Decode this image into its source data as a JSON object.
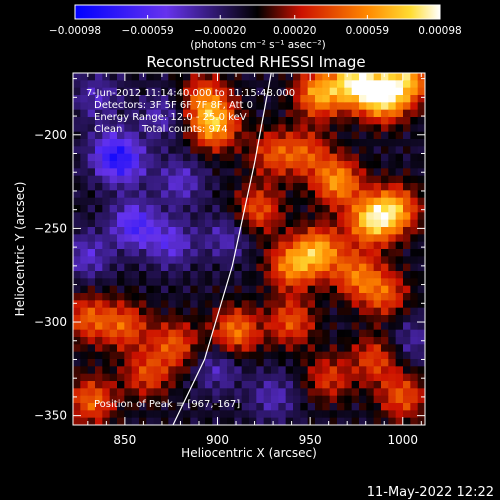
{
  "chart_data": {
    "type": "heatmap",
    "title": "Reconstructed RHESSI Image",
    "xlabel": "Heliocentric X (arcsec)",
    "ylabel": "Heliocentric Y (arcsec)",
    "xlim": [
      822,
      1012
    ],
    "ylim": [
      -355,
      -167
    ],
    "x_ticks": [
      850,
      900,
      950,
      1000
    ],
    "y_ticks": [
      -350,
      -300,
      -250,
      -200
    ],
    "grid": false,
    "annotations": {
      "time_range": "7-Jun-2012 11:14:40.000 to 11:15:48.000",
      "detectors": "Detectors: 3F 5F 6F 7F 8F, Att 0",
      "energy_range": "Energy Range: 12.0 - 25.0 keV",
      "clean": "Clean",
      "total_counts": "Total counts: 974",
      "peak": "Position of Peak = [967,-167]"
    },
    "colorbar": {
      "colormap": "blue-purple-black-red-orange-yellow-white",
      "ticks": [
        "-0.00098",
        "-0.00059",
        "-0.00020",
        "0.00020",
        "0.00059",
        "0.00098"
      ],
      "range": [
        -0.00098,
        0.00098
      ],
      "label": "(photons cm⁻² s⁻¹ asec⁻²)"
    },
    "peak_position": [
      967,
      -167
    ],
    "limb_curve": {
      "x": [
        929,
        920,
        908,
        893,
        876
      ],
      "y": [
        -167,
        -215,
        -270,
        -320,
        -355
      ]
    },
    "intensity_structures": [
      {
        "x": 975,
        "y": -172,
        "level": 0.96
      },
      {
        "x": 990,
        "y": -180,
        "level": 0.9
      },
      {
        "x": 955,
        "y": -178,
        "level": 0.75
      },
      {
        "x": 1003,
        "y": -170,
        "level": 0.7
      },
      {
        "x": 898,
        "y": -195,
        "level": 0.78
      },
      {
        "x": 893,
        "y": -180,
        "level": 0.5
      },
      {
        "x": 983,
        "y": -246,
        "level": 0.82
      },
      {
        "x": 996,
        "y": -240,
        "level": 0.7
      },
      {
        "x": 965,
        "y": -225,
        "level": 0.7
      },
      {
        "x": 955,
        "y": -262,
        "level": 0.72
      },
      {
        "x": 940,
        "y": -270,
        "level": 0.65
      },
      {
        "x": 975,
        "y": -275,
        "level": 0.55
      },
      {
        "x": 990,
        "y": -285,
        "level": 0.5
      },
      {
        "x": 922,
        "y": -240,
        "level": 0.5
      },
      {
        "x": 910,
        "y": -305,
        "level": 0.62
      },
      {
        "x": 940,
        "y": -300,
        "level": 0.5
      },
      {
        "x": 877,
        "y": -312,
        "level": 0.5
      },
      {
        "x": 850,
        "y": -302,
        "level": 0.5
      },
      {
        "x": 830,
        "y": -298,
        "level": 0.5
      },
      {
        "x": 862,
        "y": -328,
        "level": 0.45
      },
      {
        "x": 832,
        "y": -342,
        "level": 0.55
      },
      {
        "x": 1000,
        "y": -340,
        "level": 0.5
      },
      {
        "x": 985,
        "y": -320,
        "level": 0.45
      },
      {
        "x": 960,
        "y": -330,
        "level": 0.4
      },
      {
        "x": 948,
        "y": -210,
        "level": 0.45
      },
      {
        "x": 930,
        "y": -210,
        "level": 0.45
      },
      {
        "x": 850,
        "y": -215,
        "level": -0.4
      },
      {
        "x": 855,
        "y": -248,
        "level": -0.55
      },
      {
        "x": 843,
        "y": -210,
        "level": -0.45
      },
      {
        "x": 875,
        "y": -258,
        "level": -0.4
      },
      {
        "x": 880,
        "y": -225,
        "level": -0.35
      },
      {
        "x": 905,
        "y": -255,
        "level": -0.3
      },
      {
        "x": 900,
        "y": -325,
        "level": -0.3
      },
      {
        "x": 930,
        "y": -340,
        "level": -0.3
      },
      {
        "x": 835,
        "y": -180,
        "level": -0.3
      },
      {
        "x": 870,
        "y": -190,
        "level": -0.3
      },
      {
        "x": 830,
        "y": -265,
        "level": -0.35
      },
      {
        "x": 1005,
        "y": -310,
        "level": -0.25
      }
    ]
  },
  "footer": {
    "timestamp": "11-May-2022 12:22"
  }
}
